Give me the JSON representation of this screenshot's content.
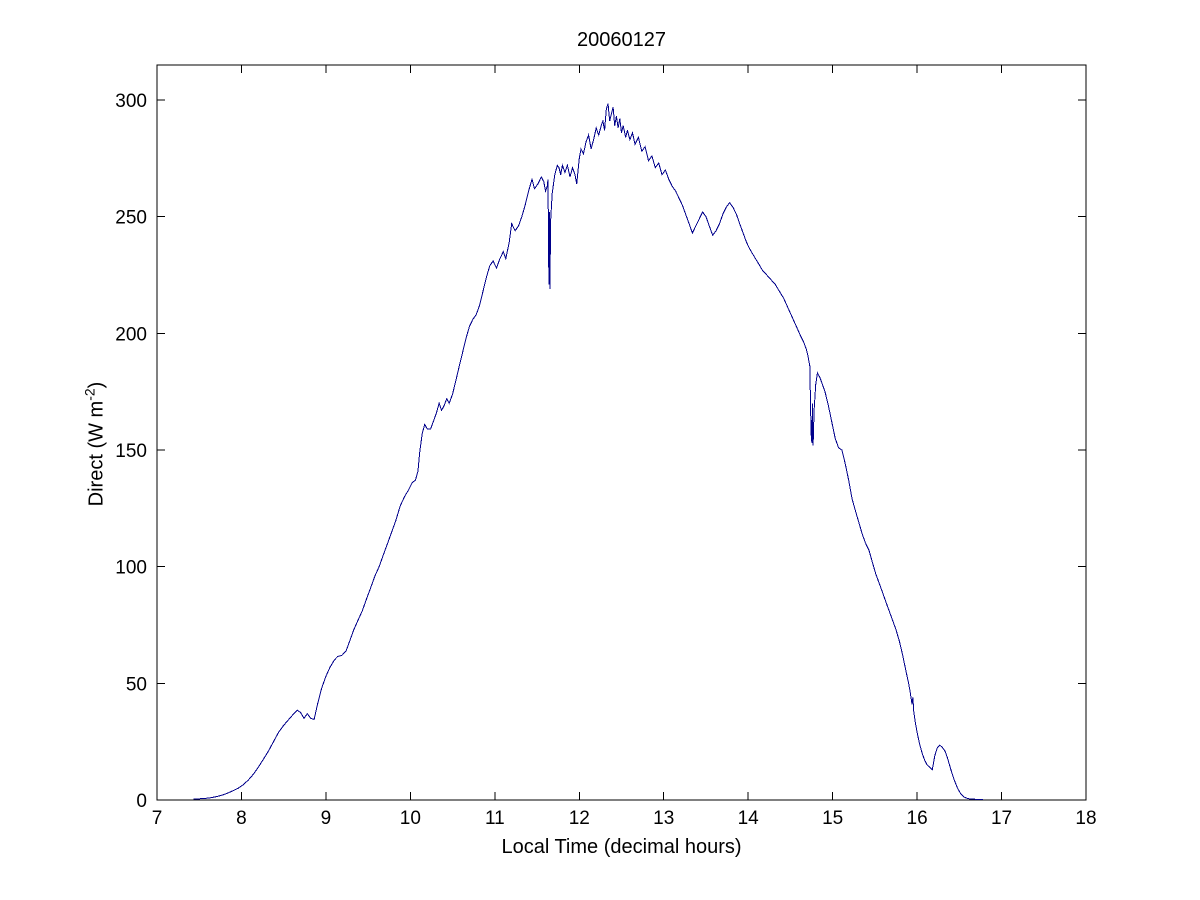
{
  "figure": {
    "background": "#ffffff"
  },
  "axes": {
    "title": "20060127",
    "xlabel": "Local Time (decimal hours)",
    "ylabel_prefix": "Direct (W m",
    "ylabel_superscript": "-2",
    "ylabel_suffix": ")"
  },
  "chart_data": {
    "type": "line",
    "title": "20060127",
    "xlabel": "Local Time (decimal hours)",
    "ylabel": "Direct (W m^-2)",
    "xlim": [
      7,
      18
    ],
    "ylim": [
      0,
      315
    ],
    "xticks": [
      7,
      8,
      9,
      10,
      11,
      12,
      13,
      14,
      15,
      16,
      17,
      18
    ],
    "yticks": [
      0,
      50,
      100,
      150,
      200,
      250,
      300
    ],
    "grid": false,
    "legend_position": "none",
    "line_color": "#00008B",
    "axis_color": "#000000",
    "peak_value": 298.5,
    "peak_time": 12.34,
    "series": [
      {
        "name": "direct-irradiance",
        "points": [
          [
            7.43,
            0.4
          ],
          [
            7.5,
            0.5
          ],
          [
            7.57,
            0.7
          ],
          [
            7.64,
            1.0
          ],
          [
            7.71,
            1.5
          ],
          [
            7.78,
            2.2
          ],
          [
            7.84,
            3.0
          ],
          [
            7.9,
            4.0
          ],
          [
            7.96,
            5.0
          ],
          [
            8.02,
            6.5
          ],
          [
            8.08,
            8.5
          ],
          [
            8.14,
            11
          ],
          [
            8.2,
            14
          ],
          [
            8.26,
            17.5
          ],
          [
            8.32,
            21
          ],
          [
            8.38,
            25
          ],
          [
            8.44,
            29
          ],
          [
            8.5,
            32
          ],
          [
            8.56,
            34.5
          ],
          [
            8.62,
            37
          ],
          [
            8.66,
            38.5
          ],
          [
            8.7,
            37.5
          ],
          [
            8.74,
            35
          ],
          [
            8.78,
            37
          ],
          [
            8.82,
            35
          ],
          [
            8.86,
            34.5
          ],
          [
            8.9,
            41
          ],
          [
            8.95,
            48
          ],
          [
            9.0,
            53
          ],
          [
            9.05,
            57
          ],
          [
            9.1,
            60
          ],
          [
            9.14,
            61.5
          ],
          [
            9.19,
            62
          ],
          [
            9.24,
            64
          ],
          [
            9.28,
            68
          ],
          [
            9.33,
            73
          ],
          [
            9.38,
            77
          ],
          [
            9.43,
            81
          ],
          [
            9.48,
            86
          ],
          [
            9.53,
            91
          ],
          [
            9.58,
            96
          ],
          [
            9.63,
            100
          ],
          [
            9.68,
            105
          ],
          [
            9.73,
            110
          ],
          [
            9.78,
            115
          ],
          [
            9.83,
            120
          ],
          [
            9.88,
            126
          ],
          [
            9.93,
            130
          ],
          [
            9.98,
            133
          ],
          [
            10.02,
            136
          ],
          [
            10.06,
            137
          ],
          [
            10.09,
            141
          ],
          [
            10.11,
            149
          ],
          [
            10.14,
            157
          ],
          [
            10.17,
            161
          ],
          [
            10.2,
            159
          ],
          [
            10.24,
            159
          ],
          [
            10.28,
            163
          ],
          [
            10.31,
            166
          ],
          [
            10.34,
            170
          ],
          [
            10.37,
            167
          ],
          [
            10.4,
            169
          ],
          [
            10.43,
            172
          ],
          [
            10.46,
            170
          ],
          [
            10.5,
            174
          ],
          [
            10.54,
            180
          ],
          [
            10.58,
            186
          ],
          [
            10.62,
            192
          ],
          [
            10.66,
            198
          ],
          [
            10.7,
            203
          ],
          [
            10.74,
            206
          ],
          [
            10.78,
            208
          ],
          [
            10.82,
            212
          ],
          [
            10.86,
            218
          ],
          [
            10.9,
            224
          ],
          [
            10.94,
            229
          ],
          [
            10.98,
            231
          ],
          [
            11.02,
            228
          ],
          [
            11.06,
            232
          ],
          [
            11.1,
            235
          ],
          [
            11.13,
            232
          ],
          [
            11.17,
            239
          ],
          [
            11.2,
            247
          ],
          [
            11.24,
            244
          ],
          [
            11.28,
            246
          ],
          [
            11.32,
            250
          ],
          [
            11.36,
            255
          ],
          [
            11.4,
            261
          ],
          [
            11.44,
            266
          ],
          [
            11.47,
            262
          ],
          [
            11.51,
            264
          ],
          [
            11.55,
            267
          ],
          [
            11.58,
            265
          ],
          [
            11.6,
            261
          ],
          [
            11.62,
            263
          ],
          [
            11.63,
            266
          ],
          [
            11.64,
            221
          ],
          [
            11.646,
            252
          ],
          [
            11.652,
            219
          ],
          [
            11.66,
            248
          ],
          [
            11.68,
            260
          ],
          [
            11.71,
            268
          ],
          [
            11.74,
            272
          ],
          [
            11.76,
            271
          ],
          [
            11.78,
            268
          ],
          [
            11.8,
            272
          ],
          [
            11.83,
            269
          ],
          [
            11.86,
            272
          ],
          [
            11.89,
            267
          ],
          [
            11.92,
            271
          ],
          [
            11.95,
            268
          ],
          [
            11.97,
            264
          ],
          [
            12.0,
            275
          ],
          [
            12.02,
            279
          ],
          [
            12.05,
            277
          ],
          [
            12.08,
            282
          ],
          [
            12.11,
            285
          ],
          [
            12.14,
            279
          ],
          [
            12.17,
            283
          ],
          [
            12.2,
            288
          ],
          [
            12.23,
            285
          ],
          [
            12.26,
            289
          ],
          [
            12.28,
            291
          ],
          [
            12.3,
            287
          ],
          [
            12.32,
            296
          ],
          [
            12.34,
            298.5
          ],
          [
            12.36,
            291
          ],
          [
            12.38,
            294
          ],
          [
            12.4,
            297
          ],
          [
            12.42,
            289
          ],
          [
            12.44,
            293
          ],
          [
            12.46,
            288
          ],
          [
            12.48,
            292
          ],
          [
            12.5,
            286
          ],
          [
            12.52,
            289
          ],
          [
            12.55,
            284
          ],
          [
            12.57,
            287
          ],
          [
            12.6,
            283
          ],
          [
            12.63,
            286
          ],
          [
            12.66,
            281
          ],
          [
            12.7,
            284
          ],
          [
            12.74,
            278
          ],
          [
            12.78,
            280
          ],
          [
            12.82,
            274
          ],
          [
            12.86,
            276
          ],
          [
            12.9,
            271
          ],
          [
            12.94,
            273
          ],
          [
            12.98,
            268
          ],
          [
            13.02,
            270
          ],
          [
            13.06,
            266
          ],
          [
            13.1,
            263
          ],
          [
            13.14,
            261
          ],
          [
            13.18,
            258
          ],
          [
            13.22,
            255
          ],
          [
            13.26,
            251
          ],
          [
            13.3,
            247
          ],
          [
            13.34,
            243
          ],
          [
            13.38,
            246
          ],
          [
            13.42,
            249
          ],
          [
            13.46,
            252
          ],
          [
            13.5,
            250
          ],
          [
            13.54,
            246
          ],
          [
            13.58,
            242
          ],
          [
            13.62,
            244
          ],
          [
            13.66,
            247
          ],
          [
            13.7,
            251
          ],
          [
            13.74,
            254
          ],
          [
            13.78,
            256
          ],
          [
            13.82,
            254
          ],
          [
            13.86,
            251
          ],
          [
            13.9,
            247
          ],
          [
            13.94,
            243
          ],
          [
            13.98,
            239
          ],
          [
            14.02,
            236
          ],
          [
            14.07,
            233
          ],
          [
            14.12,
            230
          ],
          [
            14.17,
            227
          ],
          [
            14.22,
            225
          ],
          [
            14.27,
            223
          ],
          [
            14.32,
            221
          ],
          [
            14.37,
            218
          ],
          [
            14.42,
            215
          ],
          [
            14.47,
            211
          ],
          [
            14.52,
            207
          ],
          [
            14.57,
            203
          ],
          [
            14.62,
            199
          ],
          [
            14.66,
            196
          ],
          [
            14.69,
            193
          ],
          [
            14.71,
            190
          ],
          [
            14.73,
            186
          ],
          [
            14.745,
            157
          ],
          [
            14.755,
            153
          ],
          [
            14.762,
            170
          ],
          [
            14.769,
            152
          ],
          [
            14.78,
            167
          ],
          [
            14.8,
            178
          ],
          [
            14.82,
            183
          ],
          [
            14.85,
            181
          ],
          [
            14.88,
            178
          ],
          [
            14.91,
            175
          ],
          [
            14.95,
            169
          ],
          [
            14.99,
            162
          ],
          [
            15.03,
            155
          ],
          [
            15.07,
            151
          ],
          [
            15.11,
            150
          ],
          [
            15.15,
            144
          ],
          [
            15.19,
            137
          ],
          [
            15.23,
            129
          ],
          [
            15.27,
            124
          ],
          [
            15.31,
            119
          ],
          [
            15.35,
            114
          ],
          [
            15.39,
            110
          ],
          [
            15.43,
            107
          ],
          [
            15.47,
            102
          ],
          [
            15.51,
            97
          ],
          [
            15.55,
            93
          ],
          [
            15.59,
            89
          ],
          [
            15.63,
            85
          ],
          [
            15.67,
            81
          ],
          [
            15.71,
            77
          ],
          [
            15.75,
            73
          ],
          [
            15.79,
            68
          ],
          [
            15.83,
            62
          ],
          [
            15.87,
            55
          ],
          [
            15.9,
            50
          ],
          [
            15.92,
            46
          ],
          [
            15.94,
            41
          ],
          [
            15.95,
            44
          ],
          [
            15.96,
            38
          ],
          [
            15.98,
            33
          ],
          [
            16.0,
            29
          ],
          [
            16.03,
            24
          ],
          [
            16.06,
            20
          ],
          [
            16.09,
            17
          ],
          [
            16.12,
            15
          ],
          [
            16.15,
            14
          ],
          [
            16.18,
            13
          ],
          [
            16.21,
            19
          ],
          [
            16.24,
            22.5
          ],
          [
            16.27,
            23.5
          ],
          [
            16.3,
            22.5
          ],
          [
            16.33,
            21
          ],
          [
            16.36,
            18
          ],
          [
            16.4,
            13
          ],
          [
            16.44,
            8.5
          ],
          [
            16.48,
            5
          ],
          [
            16.52,
            2.5
          ],
          [
            16.56,
            1.2
          ],
          [
            16.6,
            0.6
          ],
          [
            16.64,
            0.4
          ],
          [
            16.7,
            0.3
          ],
          [
            16.78,
            0.3
          ]
        ]
      }
    ]
  }
}
